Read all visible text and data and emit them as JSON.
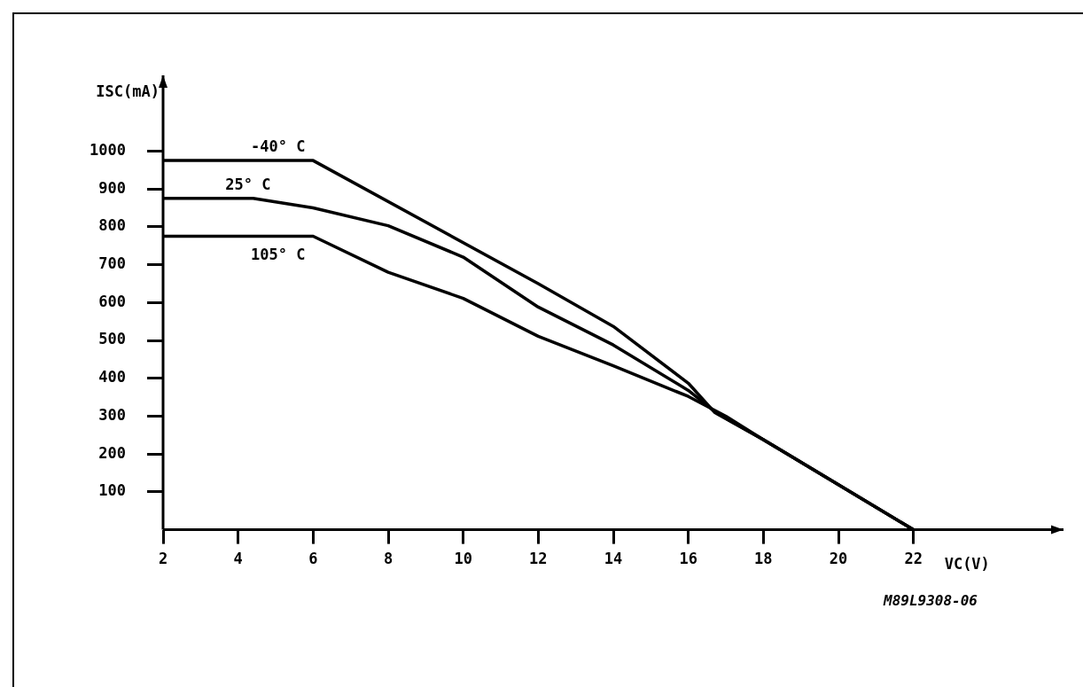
{
  "chart_data": {
    "type": "line",
    "xlabel": "VC(V)",
    "ylabel": "ISC(mA)",
    "series": [
      {
        "name": "-40° C",
        "color": "#000000",
        "x": [
          2,
          6,
          12,
          14,
          16,
          16.7,
          18,
          22
        ],
        "values": [
          975,
          975,
          650,
          537,
          387,
          310,
          238,
          0
        ]
      },
      {
        "name": "25° C",
        "color": "#000000",
        "x": [
          2,
          4.4,
          6,
          8,
          10,
          12,
          14,
          16,
          16.8,
          18,
          22
        ],
        "values": [
          875,
          875,
          850,
          803,
          720,
          588,
          488,
          368,
          305,
          238,
          0
        ]
      },
      {
        "name": "105° C",
        "color": "#000000",
        "x": [
          2,
          6,
          8,
          10,
          12,
          14,
          16,
          17,
          18,
          22
        ],
        "values": [
          775,
          775,
          680,
          611,
          511,
          433,
          352,
          300,
          238,
          0
        ]
      }
    ],
    "xlim": [
      2,
      26
    ],
    "xticks": [
      2,
      4,
      6,
      8,
      10,
      12,
      14,
      16,
      18,
      20,
      22
    ],
    "ylim": [
      0,
      1200
    ],
    "yticks": [
      100,
      200,
      300,
      400,
      500,
      600,
      700,
      800,
      900,
      1000
    ],
    "grid": false,
    "legend": false,
    "marker": "none",
    "line_style": "solid",
    "annotations": [
      "M89L9308-06"
    ]
  }
}
